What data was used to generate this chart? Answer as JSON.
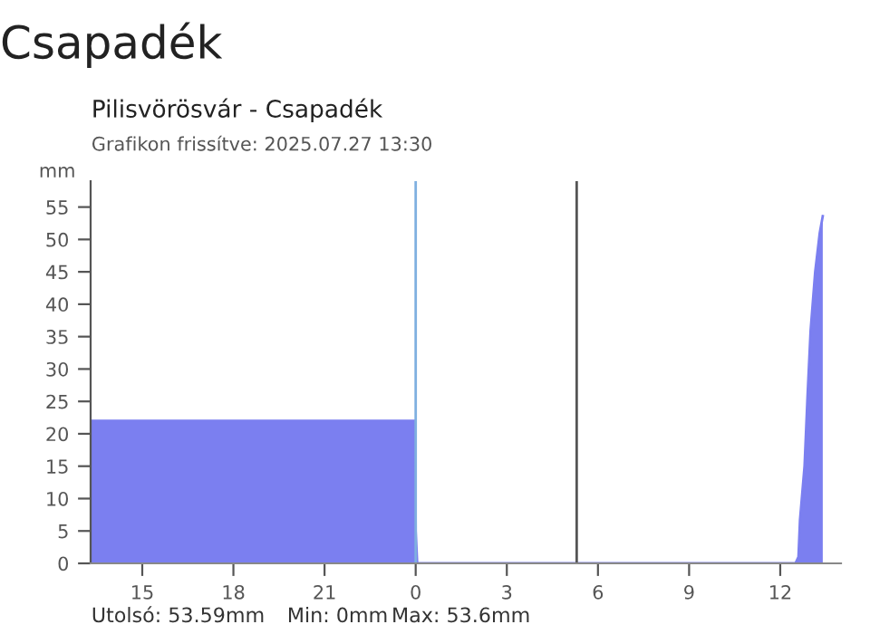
{
  "chart_data": {
    "type": "area",
    "title": "Csapadék",
    "subtitle": "Pilisvörösvár - Csapadék",
    "ylabel": "mm",
    "annotations": [
      "Grafikon frissítve: 2025.07.27 13:30",
      "Utolsó: 53.59mm",
      "Min: 0mm",
      "Max: 53.6mm"
    ],
    "series": [
      {
        "color": "#7b7ff0",
        "x": [
          "2025-07-26T13:18",
          "2025-07-26T23:59",
          "2025-07-27T00:00",
          "2025-07-27T00:03",
          "2025-07-27T12:30",
          "2025-07-27T12:36",
          "2025-07-27T12:39",
          "2025-07-27T12:48",
          "2025-07-27T12:54",
          "2025-07-27T13:00",
          "2025-07-27T13:09",
          "2025-07-27T13:18",
          "2025-07-27T13:24"
        ],
        "values": [
          22,
          22,
          5,
          0,
          0,
          1,
          6.7,
          15,
          26,
          36,
          45,
          51,
          53.6
        ]
      }
    ],
    "ref_lines": [
      {
        "axis": "x",
        "value": "2025-07-27T00:00",
        "color": "#7fb0e0"
      },
      {
        "axis": "x",
        "value": "2025-07-27T05:18",
        "color": "#555555"
      }
    ],
    "xlim": [
      "2025-07-26T13:18",
      "2025-07-27T14:00"
    ],
    "xticks": [
      {
        "value": "2025-07-26T15:00",
        "label": "15"
      },
      {
        "value": "2025-07-26T18:00",
        "label": "18"
      },
      {
        "value": "2025-07-26T21:00",
        "label": "21"
      },
      {
        "value": "2025-07-27T00:00",
        "label": "0"
      },
      {
        "value": "2025-07-27T03:00",
        "label": "3"
      },
      {
        "value": "2025-07-27T06:00",
        "label": "6"
      },
      {
        "value": "2025-07-27T09:00",
        "label": "9"
      },
      {
        "value": "2025-07-27T12:00",
        "label": "12"
      }
    ],
    "ylim": [
      0,
      59
    ],
    "yticks": [
      0,
      5,
      10,
      15,
      20,
      25,
      30,
      35,
      40,
      45,
      50,
      55
    ],
    "grid": false,
    "legend": false
  }
}
